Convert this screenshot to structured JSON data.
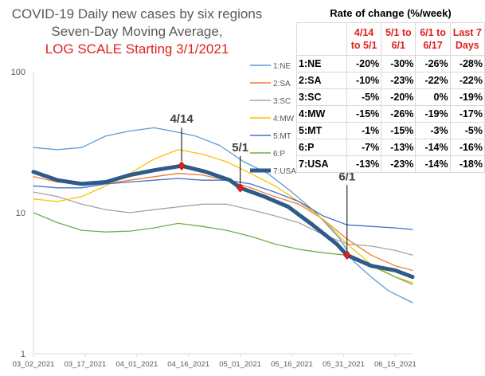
{
  "title_lines": [
    "COVID-19 Daily new cases by six regions",
    "Seven-Day Moving Average,",
    "LOG SCALE Starting 3/1/2021"
  ],
  "chart_data": {
    "type": "line",
    "y_scale": "log",
    "ylim": [
      1,
      100
    ],
    "y_ticks": [
      "1",
      "10",
      "100"
    ],
    "x_ticks": [
      "03_02_2021",
      "03_17_2021",
      "04_01_2021",
      "04_16_2021",
      "05_01_2021",
      "05_16_2021",
      "05_31_2021",
      "06_15_2021"
    ],
    "x_start": "2021-03-02",
    "x_end": "2021-06-20",
    "grid": false,
    "legend_position": "right",
    "colors": {
      "NE": "#5b9bd5",
      "SA": "#ed7d31",
      "SC": "#a5a5a5",
      "MW": "#ffc000",
      "MT": "#4472c4",
      "P": "#70ad47",
      "USA": "#2e5b8a"
    },
    "series": [
      {
        "name": "1:NE",
        "dates": [
          "2021-03-02",
          "2021-03-09",
          "2021-03-16",
          "2021-03-23",
          "2021-03-30",
          "2021-04-06",
          "2021-04-11",
          "2021-04-18",
          "2021-04-25",
          "2021-05-02",
          "2021-05-09",
          "2021-05-16",
          "2021-05-23",
          "2021-05-30",
          "2021-06-03",
          "2021-06-08",
          "2021-06-13",
          "2021-06-20"
        ],
        "values": [
          29,
          28,
          29,
          35,
          38,
          40,
          38,
          35,
          30,
          23,
          19,
          14,
          10,
          6.5,
          4.5,
          3.5,
          2.8,
          2.3
        ]
      },
      {
        "name": "2:SA",
        "dates": [
          "2021-03-02",
          "2021-03-09",
          "2021-03-16",
          "2021-03-23",
          "2021-03-30",
          "2021-04-06",
          "2021-04-13",
          "2021-04-20",
          "2021-04-27",
          "2021-05-04",
          "2021-05-11",
          "2021-05-18",
          "2021-05-25",
          "2021-06-01",
          "2021-06-08",
          "2021-06-15",
          "2021-06-20"
        ],
        "values": [
          18,
          16.5,
          16,
          16,
          17,
          18,
          19,
          18.5,
          17,
          15,
          13,
          11.5,
          9,
          6.5,
          5,
          4.2,
          3.9
        ]
      },
      {
        "name": "3:SC",
        "dates": [
          "2021-03-02",
          "2021-03-09",
          "2021-03-16",
          "2021-03-23",
          "2021-03-30",
          "2021-04-06",
          "2021-04-13",
          "2021-04-20",
          "2021-04-27",
          "2021-05-04",
          "2021-05-11",
          "2021-05-18",
          "2021-05-25",
          "2021-06-01",
          "2021-06-08",
          "2021-06-15",
          "2021-06-20"
        ],
        "values": [
          14,
          13,
          11.5,
          10.5,
          10,
          10.5,
          11,
          11.5,
          11.5,
          10.5,
          9.5,
          8.5,
          7,
          6,
          5.8,
          5.4,
          5
        ]
      },
      {
        "name": "4:MW",
        "dates": [
          "2021-03-02",
          "2021-03-09",
          "2021-03-16",
          "2021-03-23",
          "2021-03-30",
          "2021-04-06",
          "2021-04-13",
          "2021-04-20",
          "2021-04-27",
          "2021-05-04",
          "2021-05-11",
          "2021-05-18",
          "2021-05-25",
          "2021-06-01",
          "2021-06-08",
          "2021-06-15",
          "2021-06-20"
        ],
        "values": [
          12.5,
          12,
          13,
          15.5,
          19,
          24,
          28,
          26,
          23,
          19,
          15.5,
          12,
          9,
          6,
          4.3,
          3.5,
          3.2
        ]
      },
      {
        "name": "5:MT",
        "dates": [
          "2021-03-02",
          "2021-03-09",
          "2021-03-16",
          "2021-03-23",
          "2021-03-30",
          "2021-04-06",
          "2021-04-13",
          "2021-04-20",
          "2021-04-27",
          "2021-05-04",
          "2021-05-11",
          "2021-05-18",
          "2021-05-25",
          "2021-06-01",
          "2021-06-08",
          "2021-06-15",
          "2021-06-20"
        ],
        "values": [
          15.5,
          15,
          15,
          16,
          16.5,
          17,
          17.5,
          17,
          17,
          16,
          14,
          12,
          9.5,
          8.2,
          8,
          7.8,
          7.6
        ]
      },
      {
        "name": "6:P",
        "dates": [
          "2021-03-02",
          "2021-03-09",
          "2021-03-16",
          "2021-03-23",
          "2021-03-30",
          "2021-04-06",
          "2021-04-13",
          "2021-04-20",
          "2021-04-27",
          "2021-05-04",
          "2021-05-11",
          "2021-05-18",
          "2021-05-25",
          "2021-06-01",
          "2021-06-08",
          "2021-06-15",
          "2021-06-20"
        ],
        "values": [
          10,
          8.5,
          7.5,
          7.3,
          7.4,
          7.8,
          8.4,
          8,
          7.5,
          6.8,
          6,
          5.5,
          5.2,
          5,
          4.2,
          3.5,
          3.1
        ]
      },
      {
        "name": "7:USA",
        "dates": [
          "2021-03-02",
          "2021-03-09",
          "2021-03-16",
          "2021-03-23",
          "2021-03-30",
          "2021-04-06",
          "2021-04-14",
          "2021-04-21",
          "2021-04-28",
          "2021-05-01",
          "2021-05-08",
          "2021-05-15",
          "2021-05-22",
          "2021-05-29",
          "2021-06-01",
          "2021-06-08",
          "2021-06-15",
          "2021-06-20"
        ],
        "values": [
          19.5,
          17,
          16,
          16.5,
          18.5,
          20,
          21.5,
          19.5,
          17,
          15,
          13,
          11,
          8.2,
          6,
          5,
          4.2,
          3.9,
          3.5
        ]
      }
    ],
    "annotations": [
      {
        "label": "4/14",
        "date": "2021-04-14",
        "value": 21.5
      },
      {
        "label": "5/1",
        "date": "2021-05-01",
        "value": 15
      },
      {
        "label": "6/1",
        "date": "2021-06-01",
        "value": 5
      }
    ]
  },
  "rate_table": {
    "title": "Rate of change (%/week)",
    "headers": [
      "4/14 to 5/1",
      "5/1 to 6/1",
      "6/1 to 6/17",
      "Last 7 Days"
    ],
    "header_lines": [
      [
        "4/14",
        "to 5/1"
      ],
      [
        "5/1 to",
        "6/1"
      ],
      [
        "6/1 to",
        "6/17"
      ],
      [
        "Last 7",
        "Days"
      ]
    ],
    "rows": [
      {
        "region": "1:NE",
        "values": [
          "-20%",
          "-30%",
          "-26%",
          "-28%"
        ]
      },
      {
        "region": "2:SA",
        "values": [
          "-10%",
          "-23%",
          "-22%",
          "-22%"
        ]
      },
      {
        "region": "3:SC",
        "values": [
          "-5%",
          "-20%",
          "0%",
          "-19%"
        ]
      },
      {
        "region": "4:MW",
        "values": [
          "-15%",
          "-26%",
          "-19%",
          "-17%"
        ]
      },
      {
        "region": "5:MT",
        "values": [
          "-1%",
          "-15%",
          "-3%",
          "-5%"
        ]
      },
      {
        "region": "6:P",
        "values": [
          "-7%",
          "-13%",
          "-14%",
          "-16%"
        ]
      },
      {
        "region": "7:USA",
        "values": [
          "-13%",
          "-23%",
          "-14%",
          "-18%"
        ]
      }
    ]
  }
}
